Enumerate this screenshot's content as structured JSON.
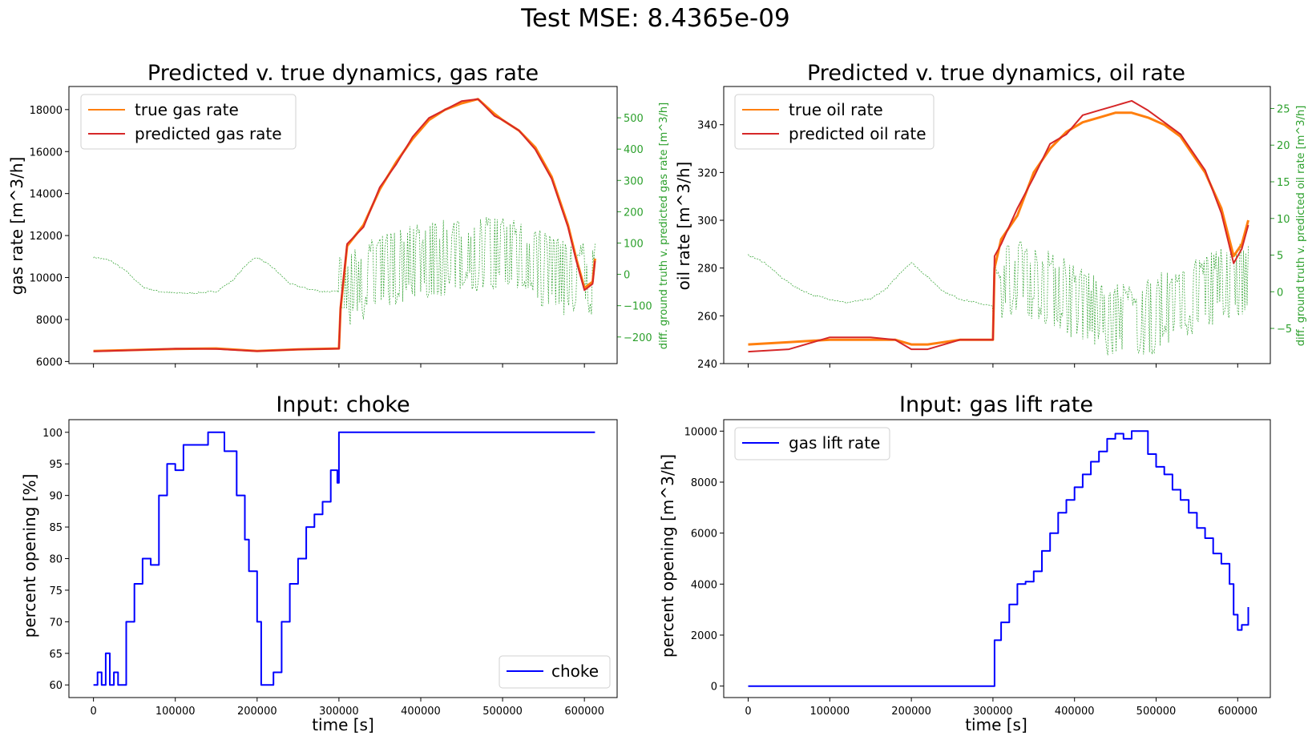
{
  "suptitle": "Test MSE: 8.4365e-09",
  "colors": {
    "true": "#ff7f0e",
    "pred": "#d62728",
    "diff": "#2ca02c",
    "input": "#0000ff"
  },
  "chart_data": [
    {
      "id": "gas",
      "type": "line",
      "title": "Predicted v. true dynamics, gas rate",
      "ylabel": "gas rate [m^3/h]",
      "xlabel": "",
      "xlim": [
        -30000,
        640000
      ],
      "ylim": [
        5900,
        19100
      ],
      "xticks": [
        0,
        100000,
        200000,
        300000,
        400000,
        500000,
        600000
      ],
      "yticks": [
        6000,
        8000,
        10000,
        12000,
        14000,
        16000,
        18000
      ],
      "legend": "upper left",
      "x": [
        0,
        50000,
        100000,
        150000,
        200000,
        250000,
        300000,
        302000,
        310000,
        330000,
        350000,
        370000,
        390000,
        410000,
        430000,
        450000,
        470000,
        490000,
        500000,
        520000,
        540000,
        560000,
        580000,
        590000,
        600000,
        610000,
        613000
      ],
      "series": [
        {
          "name": "true gas rate",
          "axis": "left",
          "values": [
            6500,
            6550,
            6600,
            6620,
            6500,
            6580,
            6620,
            8500,
            11500,
            12500,
            14200,
            15500,
            16600,
            17500,
            18000,
            18300,
            18500,
            17800,
            17500,
            17000,
            16200,
            14800,
            12500,
            10900,
            9500,
            9800,
            10900
          ]
        },
        {
          "name": "predicted gas rate",
          "axis": "left",
          "values": [
            6480,
            6540,
            6610,
            6600,
            6490,
            6570,
            6610,
            8600,
            11600,
            12400,
            14300,
            15400,
            16700,
            17600,
            18000,
            18400,
            18500,
            17700,
            17500,
            17000,
            16100,
            14700,
            12400,
            10800,
            9400,
            9700,
            10800
          ]
        }
      ],
      "secondary_y": {
        "ylabel": "diff. ground truth v. predicted gas rate [m^3/h]",
        "ylim": [
          -285,
          600
        ],
        "yticks": [
          -200,
          -100,
          0,
          100,
          200,
          300,
          400,
          500
        ],
        "series": {
          "type": "dashed-line",
          "x": [
            0,
            20000,
            40000,
            60000,
            80000,
            100000,
            120000,
            150000,
            170000,
            190000,
            200000,
            220000,
            240000,
            260000,
            280000,
            300000,
            320000,
            350000,
            380000,
            410000,
            440000,
            470000,
            500000,
            530000,
            560000,
            590000,
            613000
          ],
          "values": [
            55,
            45,
            10,
            -40,
            -55,
            -60,
            -60,
            -55,
            -20,
            40,
            55,
            20,
            -30,
            -45,
            -55,
            -55,
            -30,
            0,
            30,
            45,
            60,
            70,
            65,
            40,
            10,
            -25,
            -20
          ]
        }
      }
    },
    {
      "id": "oil",
      "type": "line",
      "title": "Predicted v. true dynamics, oil rate",
      "ylabel": "oil rate [m^3/h]",
      "xlabel": "",
      "xlim": [
        -30000,
        640000
      ],
      "ylim": [
        240,
        356
      ],
      "xticks": [
        0,
        100000,
        200000,
        300000,
        400000,
        500000,
        600000
      ],
      "yticks": [
        240,
        260,
        280,
        300,
        320,
        340
      ],
      "legend": "upper left",
      "x": [
        0,
        50000,
        100000,
        150000,
        180000,
        200000,
        220000,
        260000,
        300000,
        302000,
        310000,
        330000,
        350000,
        370000,
        390000,
        410000,
        430000,
        450000,
        470000,
        490000,
        510000,
        530000,
        560000,
        580000,
        595000,
        605000,
        613000
      ],
      "series": [
        {
          "name": "true oil rate",
          "axis": "left",
          "values": [
            248,
            249,
            250,
            250,
            250,
            248,
            248,
            250,
            250,
            280,
            292,
            302,
            320,
            330,
            337,
            341,
            343,
            345,
            345,
            343,
            340,
            335,
            320,
            305,
            285,
            290,
            300
          ]
        },
        {
          "name": "predicted oil rate",
          "axis": "left",
          "values": [
            245,
            246,
            251,
            251,
            250,
            246,
            246,
            250,
            250,
            285,
            290,
            305,
            318,
            332,
            336,
            344,
            346,
            348,
            350,
            346,
            341,
            336,
            321,
            303,
            282,
            288,
            298
          ]
        }
      ],
      "secondary_y": {
        "ylabel": "diff. ground truth v. predicted oil rate [m^3/h]",
        "ylim": [
          -9.8,
          28
        ],
        "yticks": [
          -5,
          0,
          5,
          10,
          15,
          20,
          25
        ],
        "series": {
          "type": "dashed-line",
          "x": [
            0,
            20000,
            40000,
            60000,
            80000,
            100000,
            120000,
            150000,
            170000,
            190000,
            200000,
            220000,
            240000,
            260000,
            280000,
            300000,
            320000,
            350000,
            380000,
            410000,
            440000,
            470000,
            500000,
            530000,
            560000,
            590000,
            613000
          ],
          "values": [
            5,
            4,
            2,
            0.5,
            -0.5,
            -1,
            -1.5,
            -1,
            0.5,
            3,
            4,
            2,
            0,
            -1,
            -1.5,
            -2,
            2,
            1.5,
            0,
            -2,
            -3.5,
            -4.5,
            -3,
            -1,
            0,
            1.5,
            2
          ]
        }
      }
    },
    {
      "id": "choke",
      "type": "line",
      "title": "Input: choke",
      "ylabel": "percent opening [%]",
      "xlabel": "time [s]",
      "xlim": [
        -30000,
        640000
      ],
      "ylim": [
        58,
        102
      ],
      "xticks": [
        0,
        100000,
        200000,
        300000,
        400000,
        500000,
        600000
      ],
      "xticklabels": [
        "0",
        "100000",
        "200000",
        "300000",
        "400000",
        "500000",
        "600000"
      ],
      "yticks": [
        60,
        65,
        70,
        75,
        80,
        85,
        90,
        95,
        100
      ],
      "legend": "lower right",
      "x": [
        0,
        5000,
        10000,
        15000,
        20000,
        25000,
        30000,
        40000,
        50000,
        60000,
        70000,
        80000,
        90000,
        100000,
        110000,
        120000,
        140000,
        160000,
        175000,
        185000,
        190000,
        200000,
        205000,
        215000,
        220000,
        230000,
        240000,
        250000,
        260000,
        270000,
        280000,
        290000,
        298000,
        300000,
        613000
      ],
      "series": [
        {
          "name": "choke",
          "values": [
            60,
            62,
            60,
            65,
            60,
            62,
            60,
            70,
            76,
            80,
            79,
            90,
            95,
            94,
            98,
            98,
            100,
            97,
            90,
            83,
            78,
            70,
            60,
            60,
            62,
            70,
            76,
            80,
            85,
            87,
            89,
            94,
            92,
            100,
            100
          ]
        }
      ]
    },
    {
      "id": "gaslift",
      "type": "line",
      "title": "Input: gas lift rate",
      "ylabel": "percent opening [m^3/h]",
      "xlabel": "time [s]",
      "xlim": [
        -30000,
        640000
      ],
      "ylim": [
        -450,
        10450
      ],
      "xticks": [
        0,
        100000,
        200000,
        300000,
        400000,
        500000,
        600000
      ],
      "xticklabels": [
        "0",
        "100000",
        "200000",
        "300000",
        "400000",
        "500000",
        "600000"
      ],
      "yticks": [
        0,
        2000,
        4000,
        6000,
        8000,
        10000
      ],
      "legend": "upper left",
      "x": [
        0,
        300000,
        302000,
        310000,
        320000,
        330000,
        340000,
        350000,
        360000,
        370000,
        380000,
        390000,
        400000,
        410000,
        420000,
        430000,
        440000,
        450000,
        460000,
        470000,
        480000,
        490000,
        500000,
        510000,
        520000,
        530000,
        540000,
        550000,
        560000,
        570000,
        580000,
        590000,
        595000,
        600000,
        605000,
        613000
      ],
      "series": [
        {
          "name": "gas lift rate",
          "values": [
            0,
            0,
            1800,
            2500,
            3200,
            4000,
            4100,
            4500,
            5300,
            6000,
            6800,
            7300,
            7800,
            8300,
            8800,
            9200,
            9700,
            9900,
            9700,
            10000,
            10000,
            9100,
            8600,
            8300,
            7700,
            7300,
            6800,
            6200,
            5800,
            5200,
            4800,
            4000,
            2800,
            2200,
            2400,
            3100
          ]
        }
      ]
    }
  ]
}
